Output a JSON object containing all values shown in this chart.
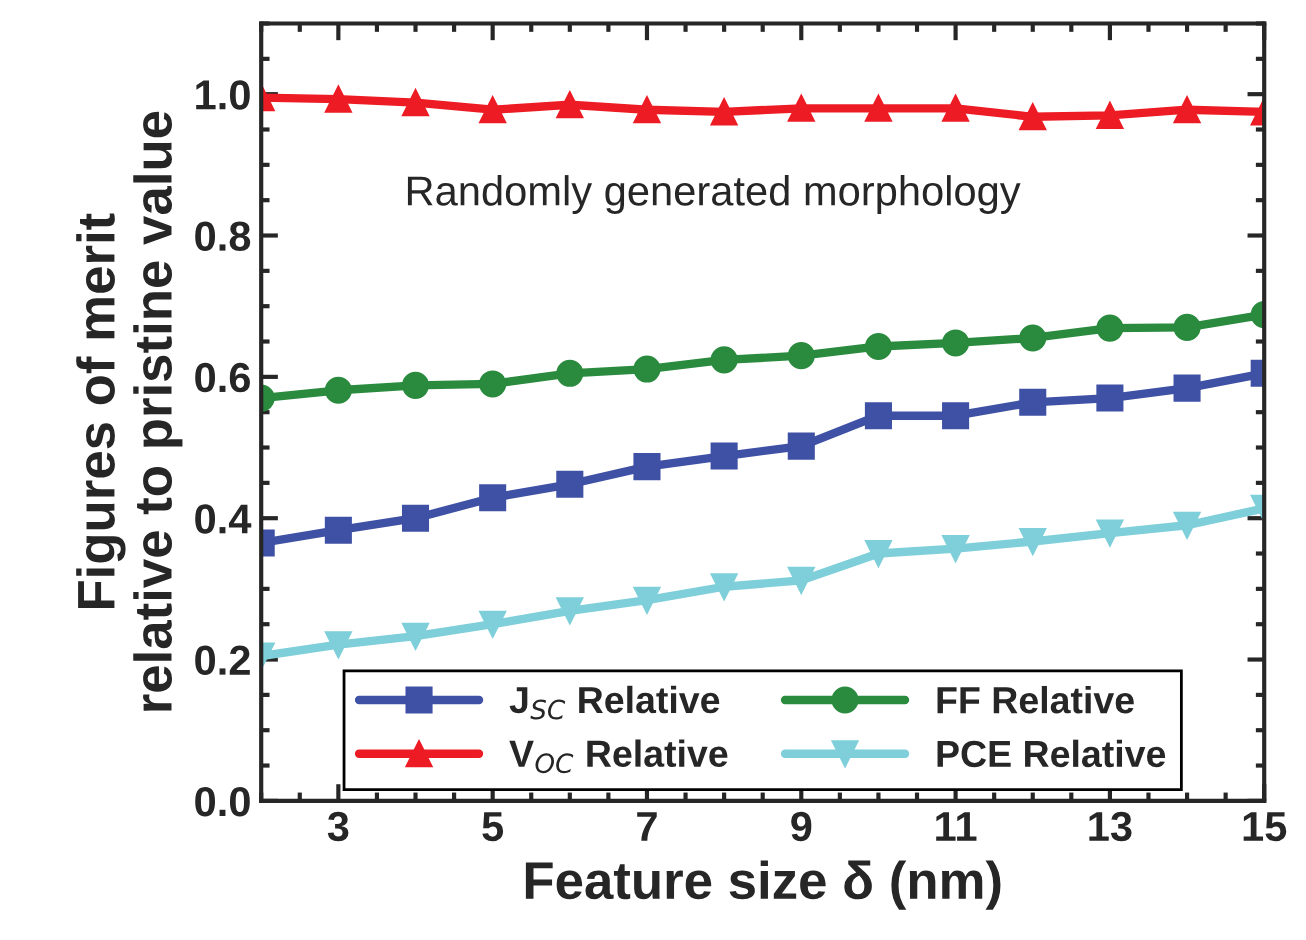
{
  "chart_data": {
    "type": "line",
    "xlabel": "Feature size δ (nm)",
    "ylabel": "Figures of merit\nrelative to pristine value",
    "x": [
      2,
      3,
      4,
      5,
      6,
      7,
      8,
      9,
      10,
      11,
      12,
      13,
      14,
      15
    ],
    "series": [
      {
        "name": "J$_{SC}$ Relative",
        "color": "#3f51a5",
        "marker": "square",
        "values": [
          0.365,
          0.383,
          0.4,
          0.429,
          0.448,
          0.473,
          0.488,
          0.502,
          0.545,
          0.545,
          0.564,
          0.57,
          0.584,
          0.605
        ]
      },
      {
        "name": "FF Relative",
        "color": "#2a8a3e",
        "marker": "circle",
        "values": [
          0.57,
          0.581,
          0.588,
          0.59,
          0.605,
          0.611,
          0.624,
          0.63,
          0.643,
          0.648,
          0.655,
          0.669,
          0.67,
          0.688
        ]
      },
      {
        "name": "V$_{OC}$ Relative",
        "color": "#ed1c24",
        "marker": "triangle",
        "values": [
          0.995,
          0.993,
          0.988,
          0.978,
          0.985,
          0.978,
          0.975,
          0.98,
          0.98,
          0.98,
          0.968,
          0.97,
          0.978,
          0.975
        ]
      },
      {
        "name": "PCE Relative",
        "color": "#7ecfd9",
        "marker": "triangle_down",
        "values": [
          0.205,
          0.221,
          0.233,
          0.25,
          0.269,
          0.284,
          0.303,
          0.312,
          0.35,
          0.357,
          0.367,
          0.379,
          0.39,
          0.414
        ]
      }
    ],
    "xlim": [
      2,
      15
    ],
    "xticks": [
      3,
      5,
      7,
      9,
      11,
      13,
      15
    ],
    "ylim": [
      0,
      1.1
    ],
    "yticks": [
      {
        "value": 0,
        "label": "0.0"
      },
      {
        "value": 0.2,
        "label": "0.2"
      },
      {
        "value": 0.4,
        "label": "0.4"
      },
      {
        "value": 0.6,
        "label": "0.6"
      },
      {
        "value": 0.8,
        "label": "0.8"
      },
      {
        "value": 1.0,
        "label": "1.0"
      }
    ],
    "annotations": [
      "Randomly generated morphology"
    ],
    "legend": "bottom",
    "grid": false,
    "line_style": "solid"
  }
}
